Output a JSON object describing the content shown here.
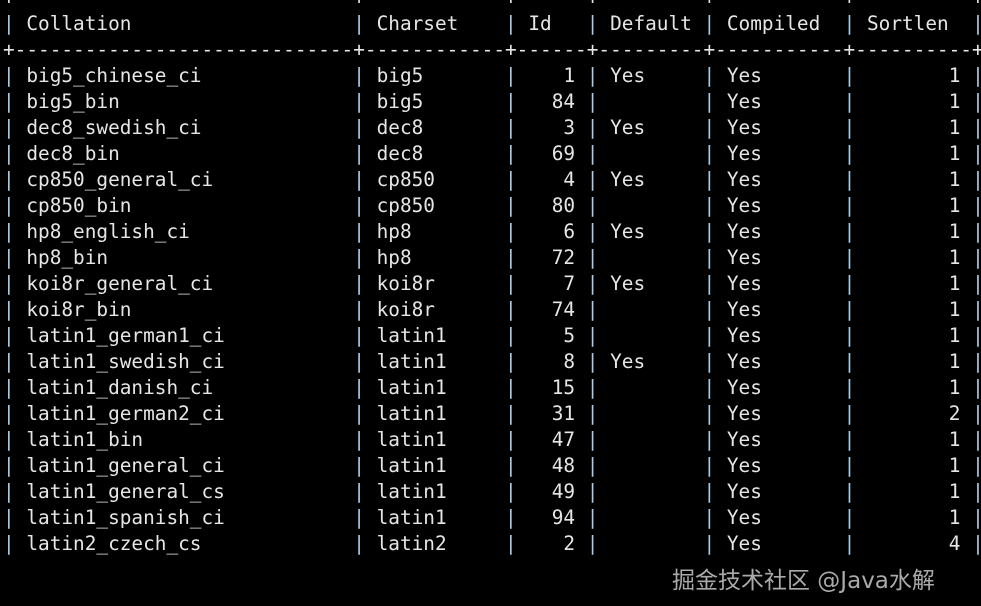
{
  "table": {
    "columns": [
      "Collation",
      "Charset",
      "Id",
      "Default",
      "Compiled",
      "Sortlen"
    ],
    "rows": [
      [
        "big5_chinese_ci",
        "big5",
        "1",
        "Yes",
        "Yes",
        "1"
      ],
      [
        "big5_bin",
        "big5",
        "84",
        "",
        "Yes",
        "1"
      ],
      [
        "dec8_swedish_ci",
        "dec8",
        "3",
        "Yes",
        "Yes",
        "1"
      ],
      [
        "dec8_bin",
        "dec8",
        "69",
        "",
        "Yes",
        "1"
      ],
      [
        "cp850_general_ci",
        "cp850",
        "4",
        "Yes",
        "Yes",
        "1"
      ],
      [
        "cp850_bin",
        "cp850",
        "80",
        "",
        "Yes",
        "1"
      ],
      [
        "hp8_english_ci",
        "hp8",
        "6",
        "Yes",
        "Yes",
        "1"
      ],
      [
        "hp8_bin",
        "hp8",
        "72",
        "",
        "Yes",
        "1"
      ],
      [
        "koi8r_general_ci",
        "koi8r",
        "7",
        "Yes",
        "Yes",
        "1"
      ],
      [
        "koi8r_bin",
        "koi8r",
        "74",
        "",
        "Yes",
        "1"
      ],
      [
        "latin1_german1_ci",
        "latin1",
        "5",
        "",
        "Yes",
        "1"
      ],
      [
        "latin1_swedish_ci",
        "latin1",
        "8",
        "Yes",
        "Yes",
        "1"
      ],
      [
        "latin1_danish_ci",
        "latin1",
        "15",
        "",
        "Yes",
        "1"
      ],
      [
        "latin1_german2_ci",
        "latin1",
        "31",
        "",
        "Yes",
        "2"
      ],
      [
        "latin1_bin",
        "latin1",
        "47",
        "",
        "Yes",
        "1"
      ],
      [
        "latin1_general_ci",
        "latin1",
        "48",
        "",
        "Yes",
        "1"
      ],
      [
        "latin1_general_cs",
        "latin1",
        "49",
        "",
        "Yes",
        "1"
      ],
      [
        "latin1_spanish_ci",
        "latin1",
        "94",
        "",
        "Yes",
        "1"
      ],
      [
        "latin2_czech_cs",
        "latin2",
        "2",
        "",
        "Yes",
        "4"
      ]
    ]
  },
  "watermark": "掘金技术社区 @Java水解"
}
